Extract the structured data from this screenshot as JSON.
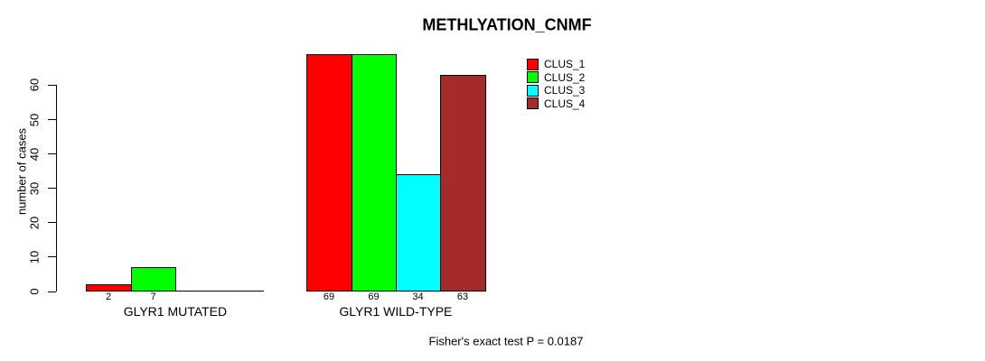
{
  "chart_data": {
    "type": "bar",
    "title": "METHLYATION_CNMF",
    "ylabel": "number of cases",
    "yticks": [
      0,
      10,
      20,
      30,
      40,
      50,
      60
    ],
    "ylim": [
      0,
      69
    ],
    "grid": false,
    "legend_position": "top-right",
    "series": [
      {
        "name": "CLUS_1",
        "color": "#FF0000"
      },
      {
        "name": "CLUS_2",
        "color": "#00FF00"
      },
      {
        "name": "CLUS_3",
        "color": "#00FFFF"
      },
      {
        "name": "CLUS_4",
        "color": "#A52A2A"
      }
    ],
    "categories": [
      "GLYR1 MUTATED",
      "GLYR1 WILD-TYPE"
    ],
    "groups": [
      {
        "label": "GLYR1 MUTATED",
        "values": [
          2,
          7,
          0,
          0
        ]
      },
      {
        "label": "GLYR1 WILD-TYPE",
        "values": [
          69,
          69,
          34,
          63
        ]
      }
    ],
    "bar_value_labels": true,
    "annotation": "Fisher's exact test P = 0.0187"
  }
}
